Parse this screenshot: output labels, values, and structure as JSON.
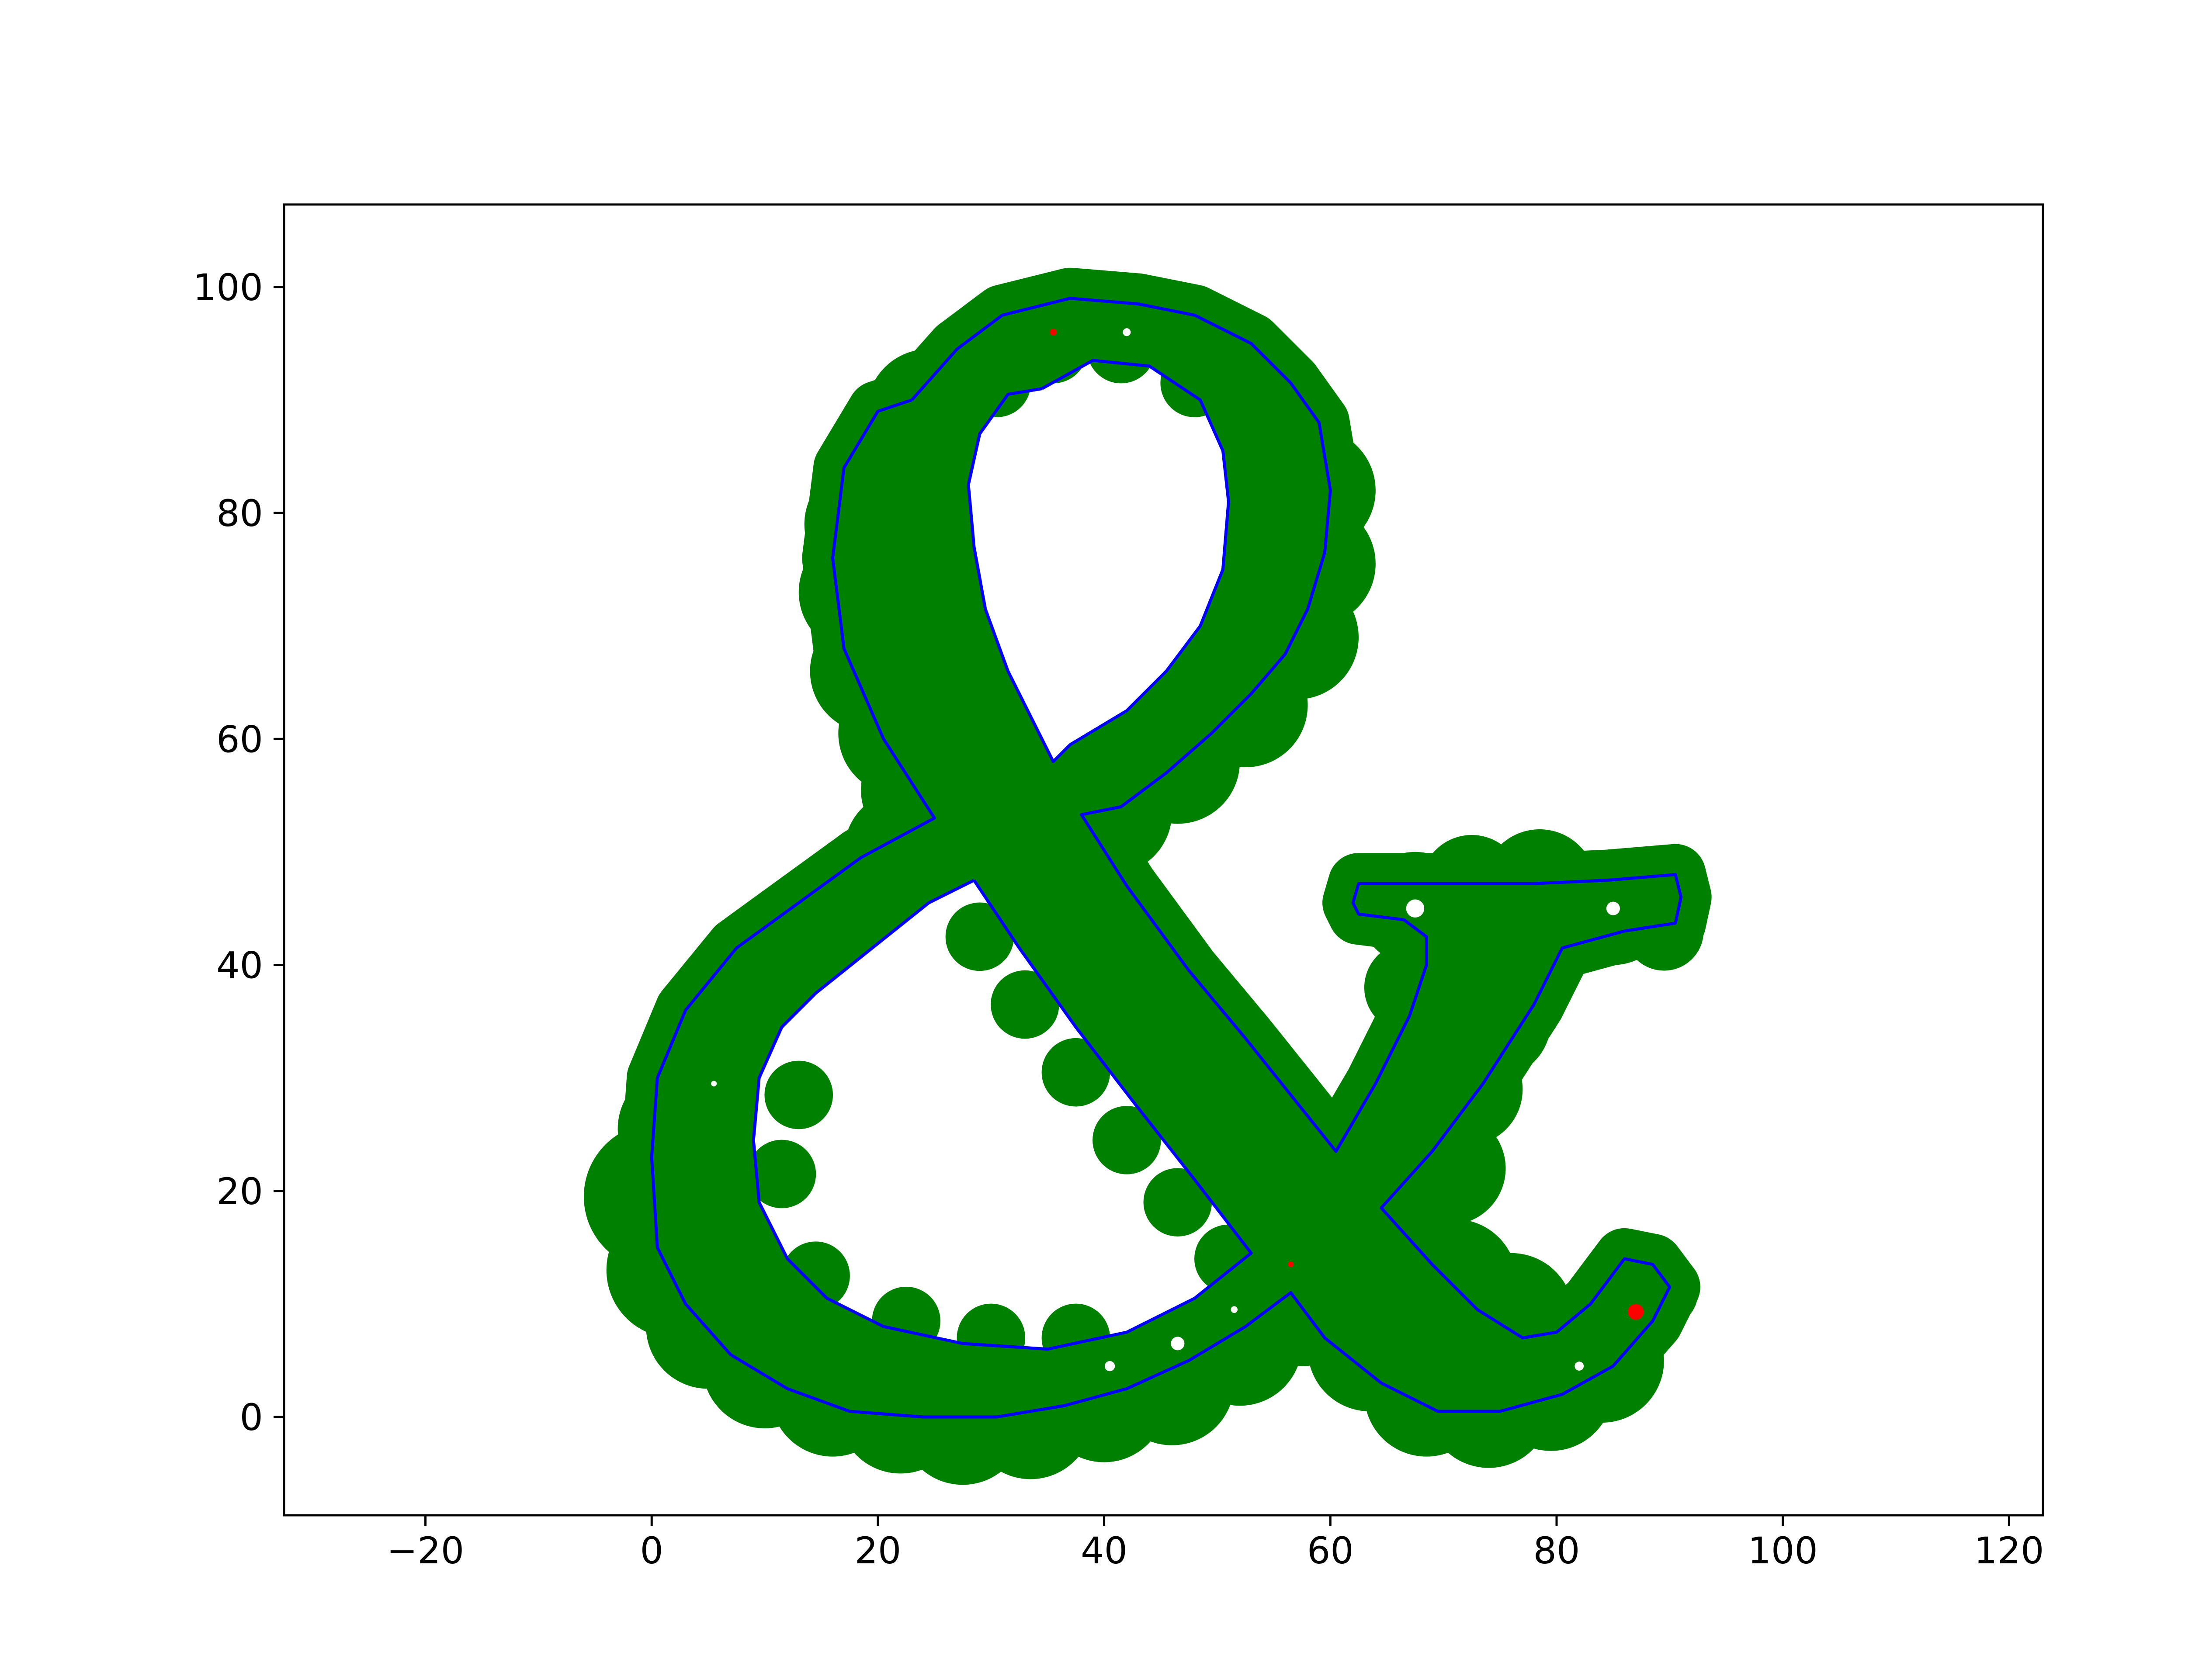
{
  "chart_data": {
    "type": "scatter",
    "title": "",
    "xlabel": "",
    "ylabel": "",
    "xlim": [
      -32.5,
      123
    ],
    "ylim": [
      -8.7,
      107.3
    ],
    "x_ticks": [
      -20,
      0,
      20,
      40,
      60,
      80,
      100,
      120
    ],
    "x_tick_labels": [
      "−20",
      "0",
      "20",
      "40",
      "60",
      "80",
      "100",
      "120"
    ],
    "y_ticks": [
      0,
      20,
      40,
      60,
      80,
      100
    ],
    "y_tick_labels": [
      "0",
      "20",
      "40",
      "60",
      "80",
      "100"
    ],
    "grid": false,
    "legend": "none",
    "colors": {
      "fill": "#008000",
      "outline": "#0000ff",
      "marker": "#ff0000",
      "hole": "#ffffff"
    },
    "filled_circles": [
      [
        30.5,
        91.5,
        5.5
      ],
      [
        35.5,
        94.5,
        5.5
      ],
      [
        41.5,
        94.5,
        5.5
      ],
      [
        48,
        91.5,
        5.5
      ],
      [
        54.5,
        88,
        5.5
      ],
      [
        58.5,
        82,
        5.5
      ],
      [
        58.5,
        75.5,
        5.5
      ],
      [
        57,
        69,
        5.5
      ],
      [
        52.5,
        63,
        5.5
      ],
      [
        46.5,
        58,
        5.5
      ],
      [
        40.5,
        53.5,
        5.5
      ],
      [
        35,
        49.5,
        5.5
      ],
      [
        24.5,
        89,
        5.5
      ],
      [
        20.5,
        84,
        5.5
      ],
      [
        19,
        79,
        5.5
      ],
      [
        18.5,
        73,
        5.5
      ],
      [
        19.5,
        66,
        5.5
      ],
      [
        22,
        60.5,
        5.5
      ],
      [
        24,
        55.5,
        5.5
      ],
      [
        22.5,
        50,
        5.5
      ],
      [
        18,
        45.5,
        5.5
      ],
      [
        13,
        41.5,
        5.5
      ],
      [
        8.5,
        36.5,
        5.5
      ],
      [
        4.5,
        31.5,
        5.5
      ],
      [
        2.5,
        25.5,
        5.5
      ],
      [
        0.5,
        19.5,
        6.5
      ],
      [
        2,
        13,
        6
      ],
      [
        5,
        8,
        5.5
      ],
      [
        10,
        4.5,
        5.5
      ],
      [
        16,
        2,
        5.5
      ],
      [
        22,
        0.5,
        5.5
      ],
      [
        27.5,
        -0.5,
        5.5
      ],
      [
        33.5,
        0,
        5.5
      ],
      [
        40,
        1.5,
        5.5
      ],
      [
        46,
        3,
        5.5
      ],
      [
        52,
        6.5,
        5.5
      ],
      [
        57.5,
        10,
        5.5
      ],
      [
        63.5,
        6,
        5.5
      ],
      [
        68.5,
        2,
        5.5
      ],
      [
        74,
        1,
        5.5
      ],
      [
        79.5,
        2.5,
        5.5
      ],
      [
        84,
        5,
        5.5
      ],
      [
        86.5,
        8.5,
        3.5
      ],
      [
        89.5,
        11,
        3
      ],
      [
        29,
        42.5,
        5.5
      ],
      [
        33,
        36.5,
        5.5
      ],
      [
        37.5,
        30.5,
        5.5
      ],
      [
        42,
        24.5,
        5.5
      ],
      [
        46.5,
        19,
        5.5
      ],
      [
        51,
        14,
        5.5
      ],
      [
        36.5,
        44.5,
        5.5
      ],
      [
        43.5,
        40,
        5.5
      ],
      [
        48.5,
        33.5,
        5.5
      ],
      [
        53,
        28,
        5.5
      ],
      [
        57,
        22.5,
        5.5
      ],
      [
        66,
        17,
        5.5
      ],
      [
        71,
        12,
        5.5
      ],
      [
        76,
        9,
        5.5
      ],
      [
        70.5,
        22,
        5
      ],
      [
        72,
        29,
        5
      ],
      [
        74.5,
        35,
        5
      ],
      [
        77,
        40,
        5
      ],
      [
        68,
        31,
        4.5
      ],
      [
        67,
        38,
        4
      ],
      [
        67.5,
        45,
        5
      ],
      [
        72.5,
        47,
        4.5
      ],
      [
        78.5,
        47,
        5
      ],
      [
        85,
        45,
        5
      ],
      [
        89.5,
        43,
        3.5
      ],
      [
        13,
        28.5,
        5.5
      ],
      [
        11.5,
        21.5,
        5.5
      ],
      [
        14.5,
        12.5,
        5.5
      ],
      [
        22.5,
        8.5,
        5.5
      ],
      [
        30,
        7,
        5.5
      ],
      [
        37.5,
        7,
        5.5
      ]
    ],
    "outline_path": [
      [
        23,
        90
      ],
      [
        27,
        94.5
      ],
      [
        31,
        97.5
      ],
      [
        37,
        99
      ],
      [
        43,
        98.5
      ],
      [
        48,
        97.5
      ],
      [
        53,
        95
      ],
      [
        56.5,
        91.5
      ],
      [
        59,
        88
      ],
      [
        60,
        82
      ],
      [
        59.5,
        76.5
      ],
      [
        58,
        71.5
      ],
      [
        56,
        67.5
      ],
      [
        53,
        64
      ],
      [
        49.5,
        60.5
      ],
      [
        45.5,
        57
      ],
      [
        41.5,
        54
      ],
      [
        38,
        53.3
      ],
      [
        42,
        47
      ],
      [
        47.5,
        39.5
      ],
      [
        52.5,
        33.5
      ],
      [
        56.5,
        28.5
      ],
      [
        60.5,
        23.5
      ],
      [
        64,
        29.5
      ],
      [
        67,
        35.5
      ],
      [
        68.5,
        40
      ],
      [
        68.5,
        42.5
      ],
      [
        66.5,
        44
      ],
      [
        62.5,
        44.5
      ],
      [
        62,
        45.5
      ],
      [
        62.5,
        47.2
      ],
      [
        70,
        47.2
      ],
      [
        78,
        47.2
      ],
      [
        84.5,
        47.5
      ],
      [
        90.5,
        48
      ],
      [
        91,
        46
      ],
      [
        90.5,
        43.7
      ],
      [
        86,
        43
      ],
      [
        80.5,
        41.5
      ],
      [
        78,
        36.5
      ],
      [
        73.5,
        29.5
      ],
      [
        69,
        23.5
      ],
      [
        64.5,
        18.5
      ],
      [
        69,
        13.5
      ],
      [
        73,
        9.5
      ],
      [
        77,
        7
      ],
      [
        80,
        7.5
      ],
      [
        83,
        10
      ],
      [
        86,
        14
      ],
      [
        88.5,
        13.5
      ],
      [
        90,
        11.5
      ],
      [
        88.5,
        8.5
      ],
      [
        85,
        4.5
      ],
      [
        80.5,
        2
      ],
      [
        75,
        0.5
      ],
      [
        69.5,
        0.5
      ],
      [
        64.5,
        3
      ],
      [
        59.5,
        7
      ],
      [
        56.5,
        11
      ],
      [
        52.5,
        8
      ],
      [
        47.5,
        5
      ],
      [
        42,
        2.5
      ],
      [
        36.5,
        1
      ],
      [
        30.5,
        0
      ],
      [
        24,
        0
      ],
      [
        17.5,
        0.5
      ],
      [
        12,
        2.5
      ],
      [
        7,
        5.5
      ],
      [
        3,
        10
      ],
      [
        0.5,
        15
      ],
      [
        0,
        23
      ],
      [
        0.5,
        30
      ],
      [
        3,
        36
      ],
      [
        7.5,
        41.5
      ],
      [
        13,
        45.5
      ],
      [
        18.5,
        49.5
      ],
      [
        25,
        53
      ],
      [
        20.5,
        60
      ],
      [
        17,
        68
      ],
      [
        16,
        76
      ],
      [
        17,
        84
      ],
      [
        20,
        89
      ],
      [
        23,
        90
      ]
    ],
    "inner_counter_top": [
      [
        34.5,
        91
      ],
      [
        39,
        93.5
      ],
      [
        44,
        93
      ],
      [
        48.5,
        90
      ],
      [
        50.5,
        85.5
      ],
      [
        51,
        81
      ],
      [
        50.5,
        75
      ],
      [
        48.5,
        70
      ],
      [
        45.5,
        66
      ],
      [
        42,
        62.5
      ],
      [
        37,
        59.5
      ],
      [
        35.5,
        58
      ],
      [
        31.5,
        66
      ],
      [
        29.5,
        71.5
      ],
      [
        28.5,
        77
      ],
      [
        28,
        82.5
      ],
      [
        29,
        87
      ],
      [
        31.5,
        90.5
      ],
      [
        34.5,
        91
      ]
    ],
    "inner_counter_bottom": [
      [
        28.5,
        47.5
      ],
      [
        32.5,
        41.5
      ],
      [
        37.5,
        34.5
      ],
      [
        42.5,
        28
      ],
      [
        48,
        21
      ],
      [
        53,
        14.5
      ],
      [
        48,
        10.5
      ],
      [
        42,
        7.5
      ],
      [
        35,
        6
      ],
      [
        27.5,
        6.5
      ],
      [
        20.5,
        8
      ],
      [
        15.5,
        10.5
      ],
      [
        12,
        14
      ],
      [
        9.5,
        19
      ],
      [
        9,
        24.5
      ],
      [
        9.5,
        30
      ],
      [
        11.5,
        34.5
      ],
      [
        14.5,
        37.5
      ],
      [
        19.5,
        41.5
      ],
      [
        24.5,
        45.5
      ],
      [
        28.5,
        47.5
      ]
    ],
    "white_dots": [
      [
        67.5,
        45,
        0.8
      ],
      [
        85,
        45,
        0.6
      ],
      [
        46.5,
        6.5,
        0.6
      ],
      [
        40.5,
        4.5,
        0.45
      ],
      [
        82,
        4.5,
        0.4
      ],
      [
        42,
        96,
        0.35
      ],
      [
        51.5,
        9.5,
        0.3
      ],
      [
        5.5,
        29.5,
        0.25
      ]
    ],
    "red_markers": [
      [
        87,
        9.3,
        0.7
      ],
      [
        35.5,
        96,
        0.3
      ],
      [
        56.5,
        13.5,
        0.25
      ]
    ]
  }
}
